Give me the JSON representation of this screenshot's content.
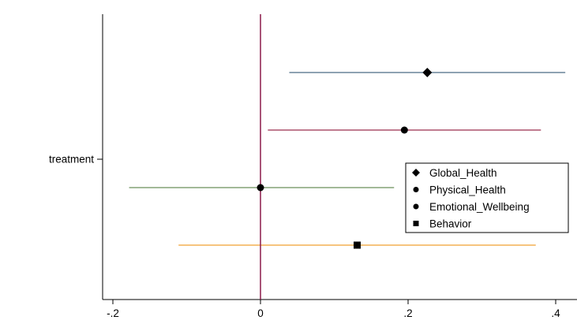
{
  "chart_data": {
    "type": "scatter",
    "subtype": "coefficient-plot",
    "title": "",
    "xlabel": "",
    "ylabel": "",
    "xlim": [
      -0.2,
      0.42
    ],
    "x_ticks": [
      -0.2,
      0,
      0.2,
      0.4
    ],
    "x_tick_labels": [
      "-.2",
      "0",
      ".2",
      ".4"
    ],
    "y_category_label": "treatment",
    "reference_line": {
      "x": 0,
      "color": "#8b1a4a"
    },
    "grid": false,
    "legend_position": "right",
    "series": [
      {
        "name": "Global_Health",
        "estimate": 0.226,
        "ci": [
          0.039,
          0.413
        ],
        "marker": "diamond",
        "ci_color": "#4a6a85"
      },
      {
        "name": "Physical_Health",
        "estimate": 0.195,
        "ci": [
          0.01,
          0.38
        ],
        "marker": "circle",
        "ci_color": "#9b2d4e"
      },
      {
        "name": "Emotional_Wellbeing",
        "estimate": 0.0,
        "ci": [
          -0.178,
          0.181
        ],
        "marker": "circle",
        "ci_color": "#6b8f5a"
      },
      {
        "name": "Behavior",
        "estimate": 0.131,
        "ci": [
          -0.111,
          0.373
        ],
        "marker": "square",
        "ci_color": "#f0a030"
      }
    ]
  }
}
